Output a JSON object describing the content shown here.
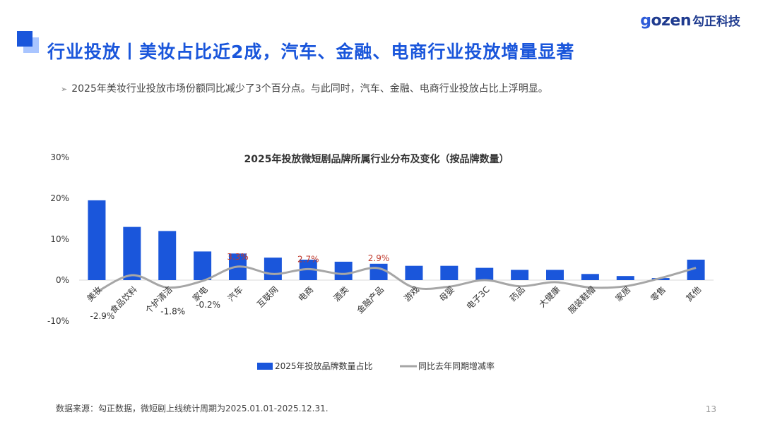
{
  "header": {
    "title": "行业投放丨美妆占比近2成，汽车、金融、电商行业投放增量显著",
    "logo_en_g": "g",
    "logo_en_rest": "ozen",
    "logo_cn": "勾正科技"
  },
  "bullet": {
    "text": "2025年美妆行业投放市场份额同比减少了3个百分点。与此同时，汽车、金融、电商行业投放占比上浮明显。"
  },
  "colors": {
    "accent": "#1a56db",
    "bar": "#1a56db",
    "line": "#a6a6a6",
    "highlight_label": "#c0392b"
  },
  "chart_data": {
    "type": "bar",
    "title": "2025年投放微短剧品牌所属行业分布及变化（按品牌数量）",
    "categories": [
      "美妆",
      "食品饮料",
      "个护清洁",
      "家电",
      "汽车",
      "互联网",
      "电商",
      "酒类",
      "金融产品",
      "游戏",
      "母婴",
      "电子3C",
      "药品",
      "大健康",
      "服装鞋帽",
      "家居",
      "零售",
      "其他"
    ],
    "series": [
      {
        "name": "2025年投放品牌数量占比",
        "type": "bar",
        "values": [
          19.5,
          13.0,
          12.0,
          7.0,
          6.5,
          5.5,
          5.0,
          4.5,
          4.0,
          3.5,
          3.5,
          3.0,
          2.5,
          2.5,
          1.5,
          1.0,
          0.5,
          5.0
        ]
      },
      {
        "name": "同比去年同期增减率",
        "type": "line",
        "values": [
          -2.9,
          1.2,
          -1.8,
          -0.2,
          3.3,
          1.5,
          2.7,
          1.5,
          2.9,
          -1.8,
          -1.6,
          0.0,
          -1.5,
          -0.5,
          -1.8,
          -1.5,
          0.5,
          3.0
        ]
      }
    ],
    "data_labels": [
      {
        "index": 0,
        "text": "-2.9%",
        "highlight": false
      },
      {
        "index": 2,
        "text": "-1.8%",
        "highlight": false
      },
      {
        "index": 3,
        "text": "-0.2%",
        "highlight": false
      },
      {
        "index": 4,
        "text": "3.3%",
        "highlight": true
      },
      {
        "index": 6,
        "text": "2.7%",
        "highlight": true
      },
      {
        "index": 8,
        "text": "2.9%",
        "highlight": true
      }
    ],
    "y_ticks": [
      "30%",
      "20%",
      "10%",
      "0%",
      "-10%"
    ],
    "ylim": [
      -10,
      30
    ],
    "grid": false,
    "legend_position": "bottom"
  },
  "footer": {
    "source": "数据来源：勾正数据，微短剧上线统计周期为2025.01.01-2025.12.31.",
    "page_number": "13"
  }
}
